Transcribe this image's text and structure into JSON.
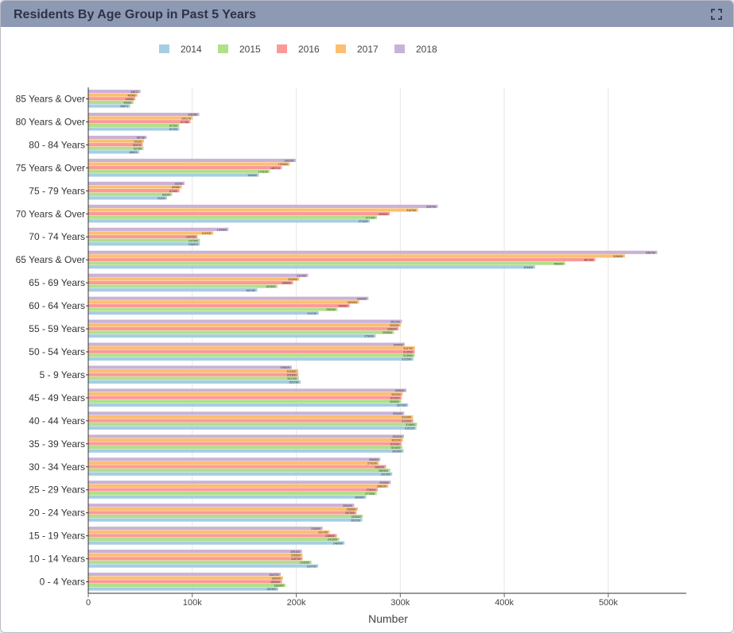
{
  "panel": {
    "title": "Residents By Age Group in Past 5 Years",
    "expand_icon": "expand-icon"
  },
  "chart_data": {
    "type": "bar",
    "orientation": "horizontal",
    "title": "",
    "xlabel": "Number",
    "ylabel": "",
    "xlim": [
      0,
      575000
    ],
    "x_ticks": [
      "0",
      "100k",
      "200k",
      "300k",
      "400k",
      "500k"
    ],
    "grid": true,
    "legend_placement": "top",
    "categories": [
      "85 Years & Over",
      "80 Years & Over",
      "80 - 84 Years",
      "75 Years & Over",
      "75 - 79 Years",
      "70 Years & Over",
      "70 - 74 Years",
      "65 Years & Over",
      "65 - 69 Years",
      "60 - 64 Years",
      "55 - 59 Years",
      "50 - 54 Years",
      "5  -  9 Years",
      "45 - 49 Years",
      "40 - 44 Years",
      "35 - 39 Years",
      "30 - 34 Years",
      "25 - 29 Years",
      "20 - 24 Years",
      "15 - 19 Years",
      "10 - 14 Years",
      "0  -  4 Years"
    ],
    "series": [
      {
        "name": "2014",
        "color": "#a6cee3",
        "values": [
          39871,
          87193,
          48601,
          163690,
          75299,
          270400,
          106910,
          429300,
          162100,
          221230,
          276000,
          312200,
          203730,
          307200,
          315120,
          302900,
          291900,
          266900,
          263100,
          246000,
          220700,
          182300
        ]
      },
      {
        "name": "2015",
        "color": "#b2df8a",
        "values": [
          43063,
          87193,
          52755,
          174100,
          80200,
          277300,
          107000,
          458300,
          181500,
          239200,
          293500,
          313500,
          202100,
          300500,
          315800,
          301600,
          289900,
          277000,
          263600,
          241000,
          214200,
          189300
        ]
      },
      {
        "name": "2016",
        "color": "#fb9a99",
        "values": [
          44836,
          97785,
          52070,
          185710,
          87300,
          289500,
          104700,
          487100,
          196600,
          250900,
          298000,
          313500,
          201600,
          300900,
          312200,
          300900,
          286000,
          278000,
          257500,
          238600,
          205700,
          185900
        ]
      },
      {
        "name": "2017",
        "color": "#fdbf6f",
        "values": [
          46969,
          100170,
          53181,
          193300,
          89580,
          316700,
          119700,
          515600,
          202600,
          260000,
          300300,
          313700,
          201500,
          302000,
          311900,
          302200,
          279100,
          288100,
          258900,
          231700,
          205500,
          186900
        ]
      },
      {
        "name": "2018",
        "color": "#cab2d6",
        "values": [
          49871,
          106280,
          55730,
          199100,
          92200,
          335700,
          134400,
          546700,
          211000,
          269000,
          301200,
          304000,
          195400,
          305500,
          303400,
          303200,
          280500,
          290500,
          255300,
          225000,
          205100,
          184700
        ]
      }
    ]
  }
}
